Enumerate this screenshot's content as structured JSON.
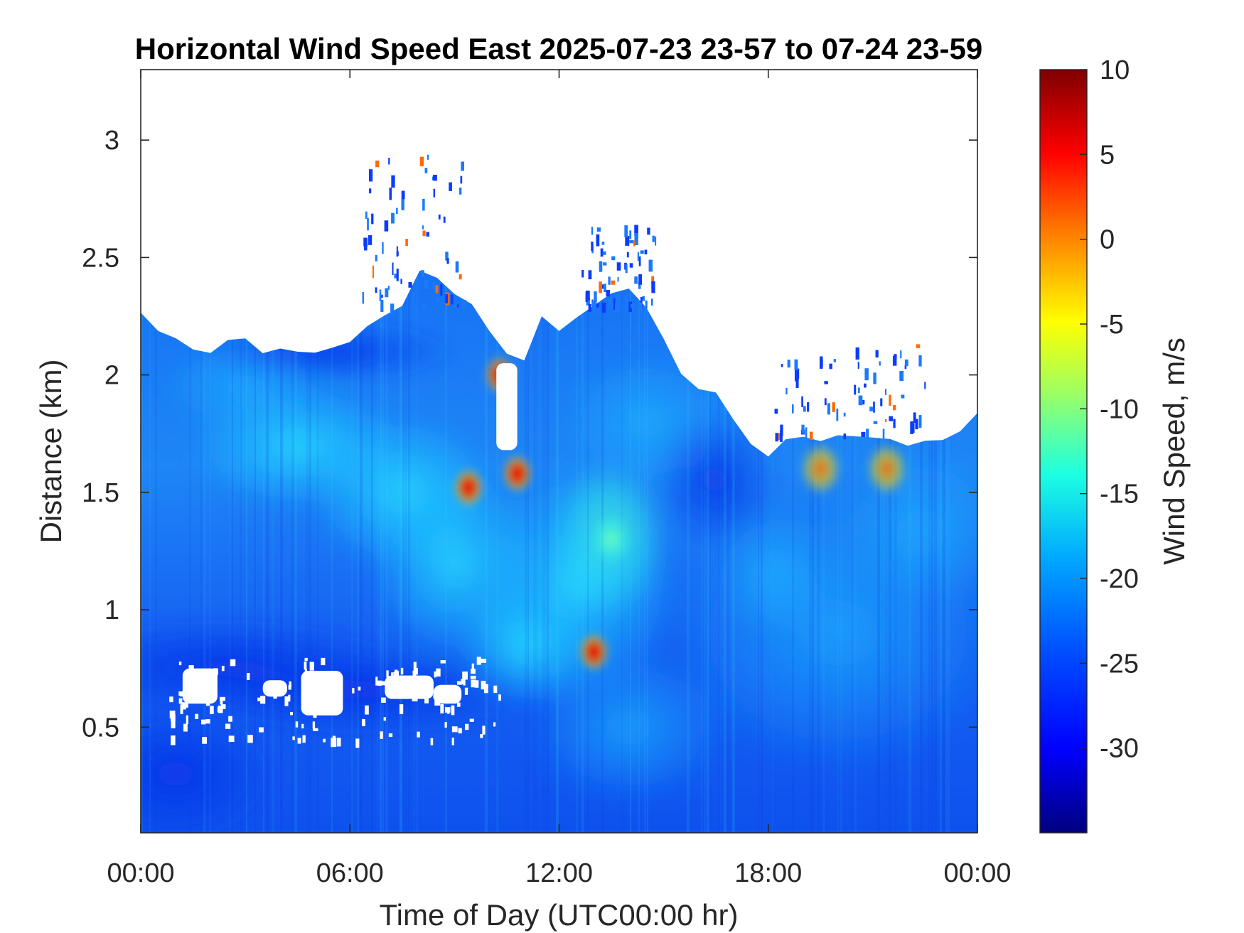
{
  "chart_data": {
    "type": "heatmap",
    "title": "Horizontal Wind Speed East 2025-07-23 23-57 to 07-24 23-59",
    "xlabel": "Time of Day (UTC00:00 hr)",
    "ylabel": "Distance (km)",
    "colorbar_label": "Wind Speed, m/s",
    "x_unit": "hour",
    "xlim": [
      0,
      24
    ],
    "ylim": [
      0.05,
      3.3
    ],
    "clim": [
      -35,
      10
    ],
    "colormap": "jet",
    "x_ticks": [
      0,
      6,
      12,
      18,
      24
    ],
    "x_tick_labels": [
      "00:00",
      "06:00",
      "12:00",
      "18:00",
      "00:00"
    ],
    "y_ticks": [
      0.5,
      1,
      1.5,
      2,
      2.5,
      3
    ],
    "y_tick_labels": [
      "0.5",
      "1",
      "1.5",
      "2",
      "2.5",
      "3"
    ],
    "c_ticks": [
      -30,
      -25,
      -20,
      -15,
      -10,
      -5,
      0,
      5,
      10
    ],
    "c_tick_labels": [
      "-30",
      "-25",
      "-20",
      "-15",
      "-10",
      "-5",
      "0",
      "5",
      "10"
    ],
    "grid": false,
    "data_top_km": {
      "hours": [
        0,
        0.5,
        1,
        1.5,
        2,
        2.5,
        3,
        3.5,
        4,
        4.5,
        5,
        5.5,
        6,
        6.5,
        7,
        7.5,
        8,
        8.5,
        9,
        9.5,
        10,
        10.5,
        11,
        11.5,
        12,
        12.5,
        13,
        13.5,
        14,
        14.5,
        15,
        15.5,
        16,
        16.5,
        17,
        17.5,
        18,
        18.5,
        19,
        19.5,
        20,
        20.5,
        21,
        21.5,
        22,
        22.5,
        23,
        23.5,
        24
      ],
      "top": [
        2.25,
        2.2,
        2.15,
        2.1,
        2.1,
        2.15,
        2.15,
        2.1,
        2.12,
        2.1,
        2.1,
        2.12,
        2.15,
        2.2,
        2.25,
        2.3,
        2.45,
        2.4,
        2.35,
        2.3,
        2.2,
        2.1,
        2.05,
        2.25,
        2.2,
        2.25,
        2.3,
        2.35,
        2.38,
        2.3,
        2.15,
        2.0,
        1.95,
        1.92,
        1.8,
        1.7,
        1.65,
        1.72,
        1.75,
        1.72,
        1.75,
        1.75,
        1.72,
        1.72,
        1.7,
        1.72,
        1.72,
        1.75,
        1.85
      ]
    },
    "wind_features": [
      {
        "x": 10.8,
        "y": 1.58,
        "value": 5
      },
      {
        "x": 10.3,
        "y": 2.0,
        "value": 3
      },
      {
        "x": 9.4,
        "y": 1.52,
        "value": 4
      },
      {
        "x": 13.0,
        "y": 0.82,
        "value": 8
      },
      {
        "x": 13.5,
        "y": 1.3,
        "value": -13
      },
      {
        "x": 19.5,
        "y": 1.6,
        "value": -5
      },
      {
        "x": 21.4,
        "y": 1.6,
        "value": -4
      }
    ]
  }
}
